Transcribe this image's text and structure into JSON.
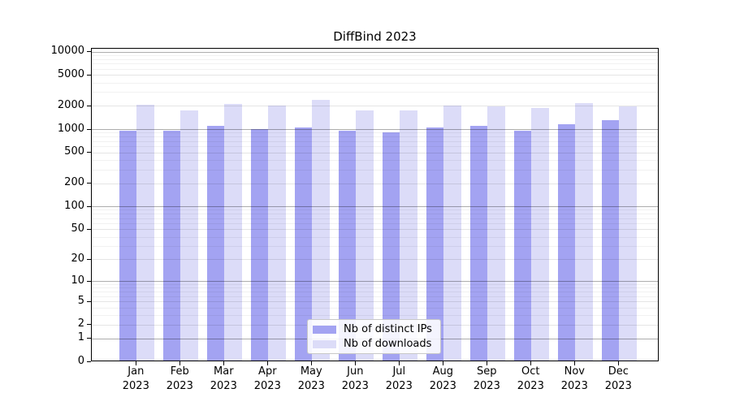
{
  "figure": {
    "background": "#ffffff"
  },
  "chart_data": {
    "type": "bar",
    "title": "DiffBind 2023",
    "categories": [
      "Jan",
      "Feb",
      "Mar",
      "Apr",
      "May",
      "Jun",
      "Jul",
      "Aug",
      "Sep",
      "Oct",
      "Nov",
      "Dec"
    ],
    "category_year": "2023",
    "series": [
      {
        "name": "Nb of distinct IPs",
        "color": "#a3a3f2",
        "values": [
          925,
          915,
          1070,
          975,
          1020,
          915,
          885,
          1005,
          1065,
          925,
          1110,
          1255
        ]
      },
      {
        "name": "Nb of downloads",
        "color": "#dcdcf8",
        "values": [
          2000,
          1695,
          2055,
          1945,
          2285,
          1680,
          1680,
          1945,
          1885,
          1805,
          2100,
          1900
        ]
      }
    ],
    "yscale": "log10(1+x)",
    "ylim": [
      0,
      10000
    ],
    "yticks": [
      0,
      1,
      2,
      5,
      10,
      20,
      50,
      100,
      200,
      500,
      1000,
      2000,
      5000,
      10000
    ],
    "power_of_ten_gridlines": [
      1,
      10,
      100,
      1000,
      10000
    ],
    "minor_gridlines": [
      3,
      4,
      6,
      7,
      8,
      9,
      30,
      40,
      60,
      70,
      80,
      90,
      300,
      400,
      600,
      700,
      800,
      900,
      3000,
      4000,
      6000,
      7000,
      8000,
      9000
    ],
    "grid": true,
    "legend_position": "lower center"
  },
  "legend": {
    "items": [
      {
        "label": "Nb of distinct IPs"
      },
      {
        "label": "Nb of downloads"
      }
    ]
  }
}
